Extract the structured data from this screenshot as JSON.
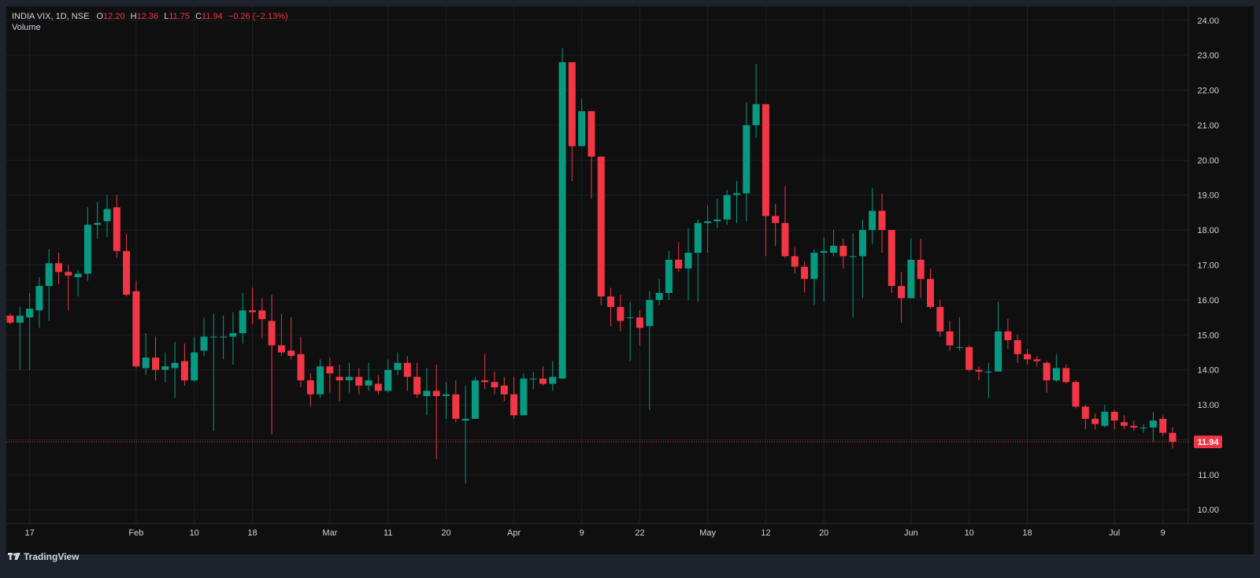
{
  "header": {
    "symbol": "INDIA VIX, 1D, NSE",
    "o_label": "O",
    "o_value": "12.20",
    "h_label": "H",
    "h_value": "12.36",
    "l_label": "L",
    "l_value": "11.75",
    "c_label": "C",
    "c_value": "11.94",
    "change": "−0.26 (−2.13%)",
    "volume_label": "Volume"
  },
  "footer": {
    "brand": "TradingView"
  },
  "colors": {
    "up": "#089981",
    "down": "#f23645",
    "background": "#0f0f0f",
    "text": "#d1d4dc"
  },
  "chart_data": {
    "type": "candlestick",
    "symbol": "INDIA VIX",
    "interval": "1D",
    "exchange": "NSE",
    "ylim": [
      9.6,
      24.4
    ],
    "y_ticks": [
      "10.00",
      "11.00",
      "12.00",
      "13.00",
      "14.00",
      "15.00",
      "16.00",
      "17.00",
      "18.00",
      "19.00",
      "20.00",
      "21.00",
      "22.00",
      "23.00",
      "24.00"
    ],
    "x_ticks": [
      "17",
      "Feb",
      "10",
      "18",
      "Mar",
      "11",
      "20",
      "Apr",
      "9",
      "22",
      "May",
      "12",
      "20",
      "Jun",
      "10",
      "18",
      "Jul",
      "9"
    ],
    "last_price": "11.94",
    "candles": [
      [
        15.55,
        15.35,
        15.62,
        15.3
      ],
      [
        15.35,
        15.55,
        15.8,
        14.0
      ],
      [
        15.5,
        15.75,
        16.2,
        14.0
      ],
      [
        15.7,
        16.4,
        16.65,
        15.2
      ],
      [
        16.4,
        17.05,
        17.45,
        15.4
      ],
      [
        17.05,
        16.8,
        17.35,
        16.45
      ],
      [
        16.8,
        16.7,
        17.0,
        15.7
      ],
      [
        16.65,
        16.75,
        16.85,
        16.1
      ],
      [
        16.75,
        18.15,
        18.65,
        16.55
      ],
      [
        18.15,
        18.2,
        18.8,
        17.75
      ],
      [
        18.25,
        18.6,
        19.0,
        17.8
      ],
      [
        18.65,
        17.4,
        19.0,
        17.2
      ],
      [
        17.4,
        16.15,
        17.9,
        16.1
      ],
      [
        16.25,
        14.1,
        16.55,
        14.05
      ],
      [
        14.05,
        14.35,
        15.05,
        13.85
      ],
      [
        14.35,
        14.0,
        14.95,
        13.7
      ],
      [
        14.0,
        14.1,
        14.5,
        13.65
      ],
      [
        14.05,
        14.2,
        14.8,
        13.2
      ],
      [
        14.25,
        13.7,
        14.75,
        13.55
      ],
      [
        13.7,
        14.5,
        14.95,
        13.65
      ],
      [
        14.55,
        14.95,
        15.5,
        14.4
      ],
      [
        14.95,
        14.95,
        15.6,
        12.25
      ],
      [
        14.95,
        14.95,
        15.55,
        14.3
      ],
      [
        14.95,
        15.05,
        15.65,
        14.15
      ],
      [
        15.05,
        15.7,
        16.2,
        14.75
      ],
      [
        15.7,
        15.65,
        16.35,
        15.3
      ],
      [
        15.7,
        15.45,
        16.05,
        14.9
      ],
      [
        15.4,
        14.7,
        16.15,
        12.15
      ],
      [
        14.7,
        14.5,
        15.6,
        14.4
      ],
      [
        14.55,
        14.4,
        15.5,
        14.3
      ],
      [
        14.45,
        13.7,
        14.95,
        13.5
      ],
      [
        13.7,
        13.3,
        13.9,
        12.95
      ],
      [
        13.3,
        14.1,
        14.3,
        13.2
      ],
      [
        14.1,
        13.9,
        14.35,
        13.35
      ],
      [
        13.8,
        13.7,
        14.15,
        13.1
      ],
      [
        13.7,
        13.8,
        14.2,
        13.35
      ],
      [
        13.8,
        13.55,
        14.05,
        13.3
      ],
      [
        13.55,
        13.7,
        14.2,
        13.4
      ],
      [
        13.6,
        13.4,
        13.85,
        13.3
      ],
      [
        13.4,
        14.0,
        14.3,
        13.35
      ],
      [
        14.0,
        14.2,
        14.5,
        13.85
      ],
      [
        14.2,
        13.8,
        14.4,
        13.4
      ],
      [
        13.8,
        13.3,
        14.2,
        13.2
      ],
      [
        13.25,
        13.4,
        14.05,
        12.7
      ],
      [
        13.4,
        13.25,
        14.15,
        11.45
      ],
      [
        13.25,
        13.3,
        13.65,
        12.6
      ],
      [
        13.3,
        12.6,
        13.7,
        12.5
      ],
      [
        12.55,
        12.6,
        13.55,
        10.75
      ],
      [
        12.6,
        13.7,
        13.8,
        12.6
      ],
      [
        13.7,
        13.65,
        14.45,
        13.45
      ],
      [
        13.65,
        13.5,
        13.95,
        13.3
      ],
      [
        13.55,
        13.3,
        13.8,
        13.1
      ],
      [
        13.3,
        12.7,
        13.8,
        12.6
      ],
      [
        12.7,
        13.75,
        13.9,
        12.7
      ],
      [
        13.75,
        13.75,
        13.95,
        13.45
      ],
      [
        13.75,
        13.6,
        14.1,
        13.55
      ],
      [
        13.6,
        13.8,
        14.25,
        13.4
      ],
      [
        13.75,
        22.8,
        23.2,
        13.75
      ],
      [
        22.8,
        20.4,
        22.8,
        19.4
      ],
      [
        20.4,
        21.4,
        21.75,
        20.4
      ],
      [
        21.4,
        20.1,
        21.4,
        18.9
      ],
      [
        20.1,
        16.1,
        20.1,
        15.85
      ],
      [
        16.1,
        15.8,
        16.35,
        15.25
      ],
      [
        15.8,
        15.4,
        16.15,
        15.1
      ],
      [
        15.5,
        15.5,
        15.95,
        14.25
      ],
      [
        15.5,
        15.2,
        15.7,
        14.7
      ],
      [
        15.25,
        16.0,
        16.25,
        12.85
      ],
      [
        16.0,
        16.2,
        16.6,
        15.85
      ],
      [
        16.2,
        17.15,
        17.4,
        16.0
      ],
      [
        17.15,
        16.9,
        17.65,
        16.8
      ],
      [
        16.9,
        17.35,
        18.05,
        16.0
      ],
      [
        17.35,
        18.2,
        18.3,
        15.95
      ],
      [
        18.2,
        18.25,
        18.7,
        17.35
      ],
      [
        18.25,
        18.3,
        18.9,
        18.05
      ],
      [
        18.3,
        19.0,
        19.15,
        18.15
      ],
      [
        19.0,
        19.05,
        19.4,
        18.2
      ],
      [
        19.05,
        21.0,
        21.65,
        18.25
      ],
      [
        21.0,
        21.6,
        22.75,
        20.65
      ],
      [
        21.6,
        18.4,
        21.6,
        17.25
      ],
      [
        18.4,
        18.2,
        18.75,
        17.55
      ],
      [
        18.2,
        17.25,
        19.25,
        17.2
      ],
      [
        17.25,
        16.95,
        17.5,
        16.75
      ],
      [
        16.95,
        16.6,
        17.1,
        16.2
      ],
      [
        16.6,
        17.35,
        17.45,
        15.85
      ],
      [
        17.35,
        17.4,
        17.8,
        15.95
      ],
      [
        17.35,
        17.55,
        18.0,
        17.25
      ],
      [
        17.55,
        17.25,
        17.75,
        16.9
      ],
      [
        17.25,
        17.25,
        17.9,
        15.5
      ],
      [
        17.25,
        18.0,
        18.3,
        16.05
      ],
      [
        18.0,
        18.55,
        19.2,
        17.6
      ],
      [
        18.55,
        18.0,
        19.05,
        17.35
      ],
      [
        18.0,
        16.4,
        18.0,
        16.2
      ],
      [
        16.4,
        16.05,
        16.8,
        15.35
      ],
      [
        16.05,
        17.15,
        17.75,
        16.05
      ],
      [
        17.15,
        16.6,
        17.75,
        16.05
      ],
      [
        16.6,
        15.8,
        16.9,
        15.75
      ],
      [
        15.8,
        15.1,
        16.0,
        14.95
      ],
      [
        15.1,
        14.7,
        15.4,
        14.55
      ],
      [
        14.65,
        14.65,
        15.5,
        14.55
      ],
      [
        14.65,
        14.0,
        14.7,
        13.95
      ],
      [
        14.0,
        13.95,
        14.1,
        13.7
      ],
      [
        13.95,
        13.95,
        14.2,
        13.2
      ],
      [
        13.95,
        15.1,
        15.95,
        13.95
      ],
      [
        15.1,
        14.85,
        15.45,
        14.6
      ],
      [
        14.85,
        14.45,
        15.0,
        14.2
      ],
      [
        14.45,
        14.3,
        14.6,
        14.15
      ],
      [
        14.3,
        14.25,
        14.4,
        14.1
      ],
      [
        14.2,
        13.7,
        14.25,
        13.35
      ],
      [
        13.7,
        14.05,
        14.45,
        13.65
      ],
      [
        14.05,
        13.65,
        14.15,
        13.6
      ],
      [
        13.65,
        12.95,
        13.7,
        12.9
      ],
      [
        12.95,
        12.6,
        13.0,
        12.3
      ],
      [
        12.6,
        12.45,
        12.75,
        12.3
      ],
      [
        12.4,
        12.8,
        13.0,
        12.35
      ],
      [
        12.8,
        12.55,
        12.85,
        12.3
      ],
      [
        12.5,
        12.4,
        12.7,
        12.3
      ],
      [
        12.4,
        12.35,
        12.55,
        12.25
      ],
      [
        12.35,
        12.35,
        12.45,
        12.2
      ],
      [
        12.35,
        12.55,
        12.8,
        11.95
      ],
      [
        12.6,
        12.2,
        12.7,
        12.1
      ],
      [
        12.2,
        11.94,
        12.36,
        11.75
      ]
    ]
  }
}
